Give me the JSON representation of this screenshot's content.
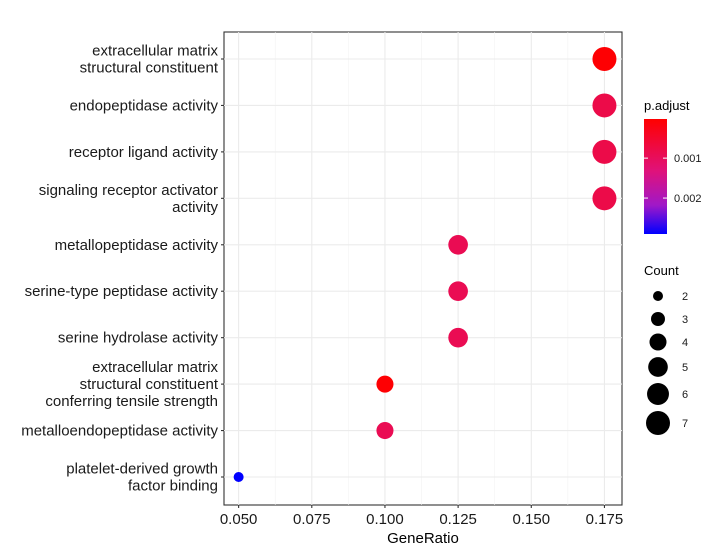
{
  "chart_data": {
    "type": "scatter",
    "xlabel": "GeneRatio",
    "xlim": [
      0.045,
      0.181
    ],
    "xticks": [
      "0.050",
      "0.075",
      "0.100",
      "0.125",
      "0.150",
      "0.175"
    ],
    "xtick_values": [
      0.05,
      0.075,
      0.1,
      0.125,
      0.15,
      0.175
    ],
    "grid": true,
    "legend_position": "right",
    "categories": [
      "extracellular matrix\nstructural constituent",
      "endopeptidase activity",
      "receptor ligand activity",
      "signaling receptor activator\nactivity",
      "metallopeptidase activity",
      "serine-type peptidase activity",
      "serine hydrolase activity",
      "extracellular matrix\nstructural constituent\nconferring tensile strength",
      "metalloendopeptidase activity",
      "platelet-derived growth\nfactor binding"
    ],
    "points": [
      {
        "gene_ratio": 0.175,
        "count": 7,
        "p_adjust": 5e-05
      },
      {
        "gene_ratio": 0.175,
        "count": 7,
        "p_adjust": 0.0008
      },
      {
        "gene_ratio": 0.175,
        "count": 7,
        "p_adjust": 0.0008
      },
      {
        "gene_ratio": 0.175,
        "count": 7,
        "p_adjust": 0.0008
      },
      {
        "gene_ratio": 0.125,
        "count": 5,
        "p_adjust": 0.0009
      },
      {
        "gene_ratio": 0.125,
        "count": 5,
        "p_adjust": 0.0009
      },
      {
        "gene_ratio": 0.125,
        "count": 5,
        "p_adjust": 0.0009
      },
      {
        "gene_ratio": 0.1,
        "count": 4,
        "p_adjust": 5e-05
      },
      {
        "gene_ratio": 0.1,
        "count": 4,
        "p_adjust": 0.0009
      },
      {
        "gene_ratio": 0.05,
        "count": 2,
        "p_adjust": 0.0029
      }
    ],
    "color_legend": {
      "title": "p.adjust",
      "range": [
        2e-05,
        0.0029
      ],
      "ticks": [
        {
          "value": 0.001,
          "label": "0.001"
        },
        {
          "value": 0.002,
          "label": "0.002"
        }
      ],
      "low_color": "#ff0000",
      "high_color": "#0000ff",
      "mid_color": "#e0127a"
    },
    "size_legend": {
      "title": "Count",
      "values": [
        2,
        3,
        4,
        5,
        6,
        7
      ],
      "labels": [
        "2",
        "3",
        "4",
        "5",
        "6",
        "7"
      ]
    }
  }
}
